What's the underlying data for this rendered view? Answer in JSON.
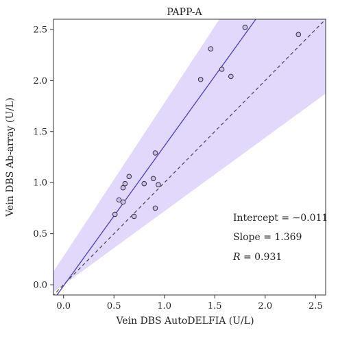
{
  "chart_data": {
    "type": "scatter",
    "title": "PAPP-A",
    "xlabel": "Vein DBS AutoDELFIA (U/L)",
    "ylabel": "Vein DBS Ab-array (U/L)",
    "xlim": [
      -0.1,
      2.6
    ],
    "ylim": [
      -0.1,
      2.6
    ],
    "x_ticks": [
      0.0,
      0.5,
      1.0,
      1.5,
      2.0,
      2.5
    ],
    "y_ticks": [
      0.0,
      0.5,
      1.0,
      1.5,
      2.0,
      2.5
    ],
    "x_tick_labels": [
      "0.0",
      "0.5",
      "1.0",
      "1.5",
      "2.0",
      "2.5"
    ],
    "y_tick_labels": [
      "0.0",
      "0.5",
      "1.0",
      "1.5",
      "2.0",
      "2.5"
    ],
    "grid": false,
    "points": [
      {
        "x": 0.51,
        "y": 0.69
      },
      {
        "x": 0.55,
        "y": 0.83
      },
      {
        "x": 0.59,
        "y": 0.81
      },
      {
        "x": 0.59,
        "y": 0.95
      },
      {
        "x": 0.61,
        "y": 0.99
      },
      {
        "x": 0.65,
        "y": 1.06
      },
      {
        "x": 0.7,
        "y": 0.67
      },
      {
        "x": 0.8,
        "y": 0.99
      },
      {
        "x": 0.89,
        "y": 1.04
      },
      {
        "x": 0.91,
        "y": 0.75
      },
      {
        "x": 0.91,
        "y": 1.29
      },
      {
        "x": 0.94,
        "y": 0.98
      },
      {
        "x": 1.36,
        "y": 2.01
      },
      {
        "x": 1.46,
        "y": 2.31
      },
      {
        "x": 1.57,
        "y": 2.11
      },
      {
        "x": 1.66,
        "y": 2.04
      },
      {
        "x": 1.8,
        "y": 2.52
      },
      {
        "x": 2.33,
        "y": 2.45
      }
    ],
    "regression": {
      "intercept": -0.011,
      "slope": 1.369
    },
    "identity_line": {
      "intercept": 0,
      "slope": 1,
      "style": "dashed"
    },
    "band": {
      "lower_slope": 0.72,
      "upper_slope": 1.5,
      "upper_intercept": 0.28
    },
    "annotations": {
      "intercept": "Intercept = −0.011",
      "slope": "Slope = 1.369",
      "r_symbol": "R",
      "r_value": " = 0.931"
    },
    "colors": {
      "band": "#e2d8fb",
      "regression_line": "#4b3fb8",
      "identity_line": "#444444",
      "point_fill": "#c9bdf0",
      "point_stroke": "#333333"
    }
  }
}
